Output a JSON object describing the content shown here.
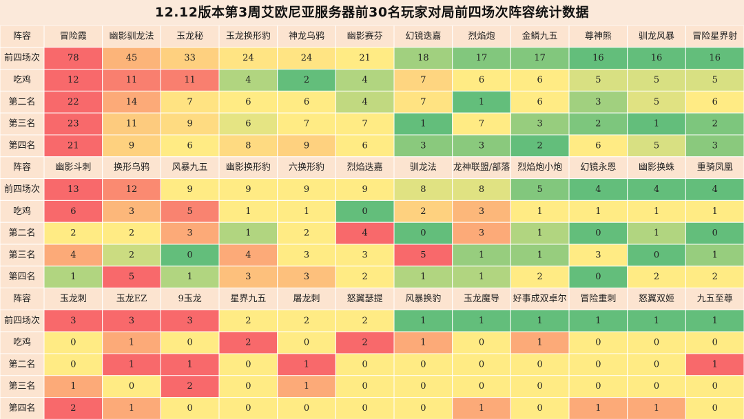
{
  "title": "12.12版本第3周艾欧尼亚服务器前30名玩家对局前四场次阵容统计数据",
  "chart_data": {
    "type": "table",
    "title": "12.12版本第3周艾欧尼亚服务器前30名玩家对局前四场次阵容统计数据",
    "header_label": "阵容",
    "row_labels": [
      "前四场次",
      "吃鸡",
      "第二名",
      "第三名",
      "第四名"
    ],
    "sections": [
      {
        "lineups": [
          "冒险霞",
          "幽影驯龙法",
          "玉龙秘",
          "玉龙换形豹",
          "神龙乌鸦",
          "幽影赛芬",
          "幻镜迭嘉",
          "烈焰炮",
          "金鳞九五",
          "尊神熊",
          "驯龙风暴",
          "冒险星界射"
        ],
        "values": [
          [
            78,
            45,
            33,
            24,
            24,
            21,
            18,
            17,
            17,
            16,
            16,
            16
          ],
          [
            12,
            11,
            11,
            4,
            2,
            4,
            7,
            6,
            6,
            5,
            5,
            5
          ],
          [
            22,
            14,
            7,
            6,
            6,
            4,
            7,
            1,
            6,
            3,
            5,
            6
          ],
          [
            23,
            11,
            9,
            6,
            7,
            7,
            1,
            7,
            3,
            2,
            1,
            2
          ],
          [
            21,
            9,
            6,
            8,
            9,
            6,
            3,
            3,
            2,
            6,
            5,
            3
          ]
        ]
      },
      {
        "lineups": [
          "幽影斗刺",
          "换形乌鸦",
          "风暴九五",
          "幽影换形豹",
          "六换形豹",
          "烈焰迭嘉",
          "驯龙法",
          "龙神联盟/部落",
          "烈焰炮小炮",
          "幻镜永恩",
          "幽影换蛛",
          "重骑凤凰"
        ],
        "values": [
          [
            13,
            12,
            9,
            9,
            9,
            9,
            8,
            8,
            5,
            4,
            4,
            4
          ],
          [
            6,
            3,
            5,
            1,
            1,
            0,
            2,
            3,
            1,
            1,
            1,
            1
          ],
          [
            2,
            2,
            3,
            1,
            2,
            4,
            0,
            3,
            1,
            0,
            1,
            0
          ],
          [
            4,
            2,
            0,
            4,
            3,
            3,
            5,
            1,
            1,
            3,
            0,
            1
          ],
          [
            1,
            5,
            1,
            3,
            3,
            2,
            1,
            1,
            2,
            0,
            2,
            2
          ]
        ]
      },
      {
        "lineups": [
          "玉龙刺",
          "玉龙EZ",
          "9玉龙",
          "星界九五",
          "屠龙刺",
          "怒翼瑟提",
          "风暴换豹",
          "玉龙魔导",
          "好事成双卓尔",
          "冒险重刺",
          "怒翼双姬",
          "九五至尊"
        ],
        "values": [
          [
            3,
            3,
            3,
            2,
            2,
            2,
            1,
            1,
            1,
            1,
            1,
            1
          ],
          [
            0,
            1,
            0,
            2,
            0,
            2,
            1,
            0,
            1,
            0,
            0,
            0
          ],
          [
            0,
            1,
            1,
            0,
            1,
            0,
            0,
            0,
            0,
            0,
            0,
            1
          ],
          [
            1,
            0,
            2,
            0,
            1,
            0,
            0,
            0,
            0,
            0,
            0,
            0
          ],
          [
            2,
            1,
            0,
            0,
            0,
            0,
            0,
            1,
            0,
            1,
            1,
            0
          ]
        ]
      }
    ]
  }
}
